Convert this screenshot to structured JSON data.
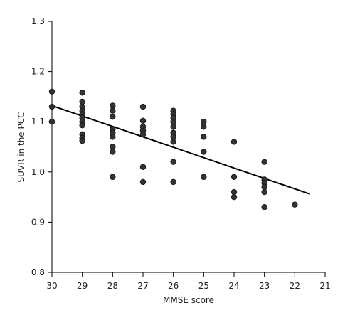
{
  "chart_data": {
    "type": "scatter",
    "title": "",
    "xlabel": "MMSE score",
    "ylabel": "SUVR in the PCC",
    "xlim": [
      30,
      21
    ],
    "ylim": [
      0.8,
      1.3
    ],
    "x_reversed": true,
    "x_ticks": [
      30,
      29,
      28,
      27,
      26,
      25,
      24,
      23,
      22,
      21
    ],
    "x_tick_labels": [
      "30",
      "29",
      "28",
      "27",
      "26",
      "25",
      "24",
      "23",
      "22",
      "21"
    ],
    "y_ticks": [
      0.8,
      0.9,
      1.0,
      1.1,
      1.2,
      1.3
    ],
    "y_tick_labels": [
      "0.8",
      "0.9",
      "1.0",
      "1.1",
      "1.2",
      "1.3"
    ],
    "grid": false,
    "marker_color": "#333333",
    "line_color": "#000000",
    "points": [
      {
        "x": 30,
        "y": 1.16
      },
      {
        "x": 30,
        "y": 1.13
      },
      {
        "x": 30,
        "y": 1.1
      },
      {
        "x": 29,
        "y": 1.158
      },
      {
        "x": 29,
        "y": 1.14
      },
      {
        "x": 29,
        "y": 1.13
      },
      {
        "x": 29,
        "y": 1.122
      },
      {
        "x": 29,
        "y": 1.115
      },
      {
        "x": 29,
        "y": 1.108
      },
      {
        "x": 29,
        "y": 1.1
      },
      {
        "x": 29,
        "y": 1.093
      },
      {
        "x": 29,
        "y": 1.075
      },
      {
        "x": 29,
        "y": 1.068
      },
      {
        "x": 29,
        "y": 1.062
      },
      {
        "x": 28,
        "y": 1.132
      },
      {
        "x": 28,
        "y": 1.122
      },
      {
        "x": 28,
        "y": 1.11
      },
      {
        "x": 28,
        "y": 1.085
      },
      {
        "x": 28,
        "y": 1.078
      },
      {
        "x": 28,
        "y": 1.07
      },
      {
        "x": 28,
        "y": 1.05
      },
      {
        "x": 28,
        "y": 1.04
      },
      {
        "x": 28,
        "y": 0.99
      },
      {
        "x": 27,
        "y": 1.13
      },
      {
        "x": 27,
        "y": 1.102
      },
      {
        "x": 27,
        "y": 1.09
      },
      {
        "x": 27,
        "y": 1.082
      },
      {
        "x": 27,
        "y": 1.075
      },
      {
        "x": 27,
        "y": 1.01
      },
      {
        "x": 27,
        "y": 0.98
      },
      {
        "x": 26,
        "y": 1.122
      },
      {
        "x": 26,
        "y": 1.115
      },
      {
        "x": 26,
        "y": 1.108
      },
      {
        "x": 26,
        "y": 1.1
      },
      {
        "x": 26,
        "y": 1.09
      },
      {
        "x": 26,
        "y": 1.078
      },
      {
        "x": 26,
        "y": 1.07
      },
      {
        "x": 26,
        "y": 1.06
      },
      {
        "x": 26,
        "y": 1.02
      },
      {
        "x": 26,
        "y": 0.98
      },
      {
        "x": 25,
        "y": 1.1
      },
      {
        "x": 25,
        "y": 1.09
      },
      {
        "x": 25,
        "y": 1.07
      },
      {
        "x": 25,
        "y": 1.04
      },
      {
        "x": 25,
        "y": 0.99
      },
      {
        "x": 24,
        "y": 1.06
      },
      {
        "x": 24,
        "y": 0.99
      },
      {
        "x": 24,
        "y": 0.96
      },
      {
        "x": 24,
        "y": 0.95
      },
      {
        "x": 23,
        "y": 1.02
      },
      {
        "x": 23,
        "y": 0.985
      },
      {
        "x": 23,
        "y": 0.978
      },
      {
        "x": 23,
        "y": 0.97
      },
      {
        "x": 23,
        "y": 0.96
      },
      {
        "x": 23,
        "y": 0.93
      },
      {
        "x": 22,
        "y": 0.935
      }
    ],
    "regression_line": {
      "x1": 30,
      "y1": 1.132,
      "x2": 21.5,
      "y2": 0.956
    }
  }
}
